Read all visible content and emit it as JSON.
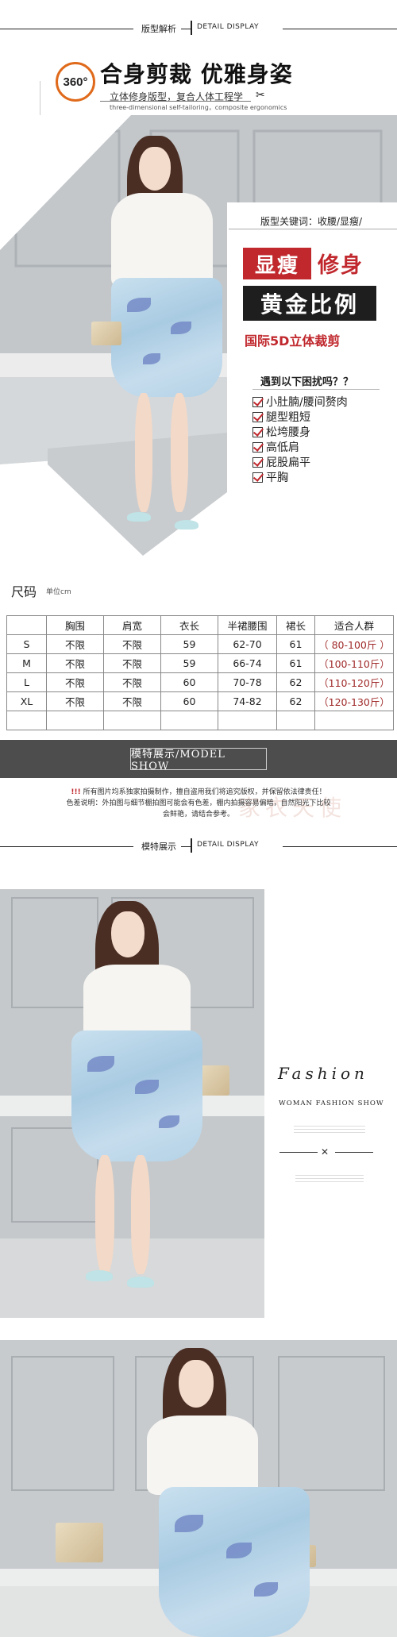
{
  "section1": {
    "cn": "版型解析",
    "en": "DETAIL DISPLAY"
  },
  "banner": {
    "badge": "360°",
    "title": "合身剪裁 优雅身姿",
    "subtitle": "立体修身版型，复合人体工程学",
    "subtitle_en": "three-dimensional self-tailoring，composite ergonomics"
  },
  "features": {
    "keyword_label": "版型关键词：收腰/显瘦/",
    "tag1a": "显瘦",
    "tag1b": "修身",
    "tag2": "黄金比例",
    "tag3": "国际5D立体裁剪",
    "question": "遇到以下困扰吗？？",
    "problems": [
      "小肚腩/腰间赘肉",
      "腿型粗短",
      "松垮腰身",
      "高低肩",
      "屁股扁平",
      "平胸"
    ]
  },
  "size": {
    "title": "尺码",
    "unit": "单位cm",
    "headers": [
      "",
      "胸围",
      "肩宽",
      "衣长",
      "半裙腰围",
      "裙长",
      "适合人群"
    ],
    "rows": [
      [
        "S",
        "不限",
        "不限",
        "59",
        "62-70",
        "61",
        "（ 80-100斤 ）"
      ],
      [
        "M",
        "不限",
        "不限",
        "59",
        "66-74",
        "61",
        "（100-110斤）"
      ],
      [
        "L",
        "不限",
        "不限",
        "60",
        "70-78",
        "62",
        "（110-120斤）"
      ],
      [
        "XL",
        "不限",
        "不限",
        "60",
        "74-82",
        "62",
        "（120-130斤）"
      ],
      [
        "",
        "",
        "",
        "",
        "",
        "",
        ""
      ]
    ]
  },
  "model_show": {
    "banner": "模特展示/MODEL SHOW",
    "notice_mark": "!!!",
    "notice1": "所有图片均系独家拍摄制作，擅自盗用我们将追究版权，并保留依法律责任！",
    "notice2": "色差说明：外拍图与细节棚拍图可能会有色差，棚内拍摄容易偏暗，自然阳光下比较",
    "notice3": "会鲜艳，请结合参考。",
    "watermark": "家衣天使"
  },
  "section2": {
    "cn": "模特展示",
    "en": "DETAIL DISPLAY"
  },
  "fashion": {
    "word": "Fashion",
    "sub": "WOMAN FASHION SHOW"
  }
}
